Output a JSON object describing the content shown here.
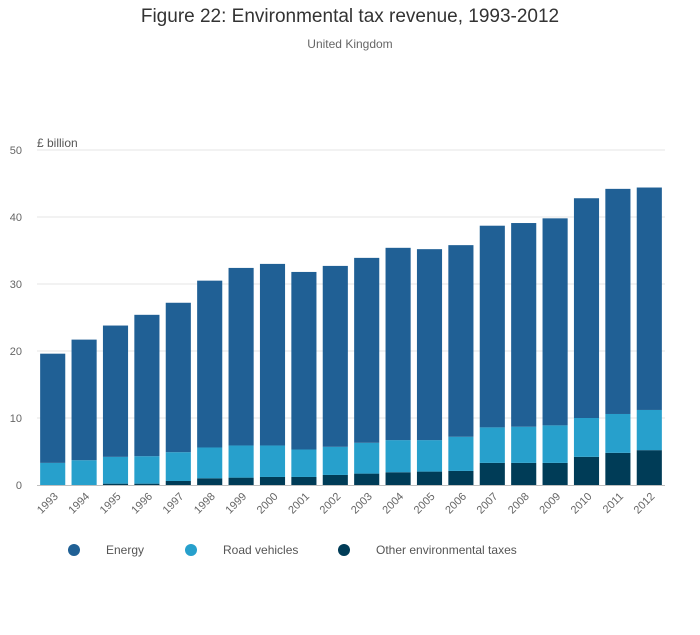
{
  "chart_data": {
    "type": "bar",
    "stacked": true,
    "title": "Figure 22: Environmental tax revenue, 1993-2012",
    "subtitle": "United Kingdom",
    "unit_label": "£ billion",
    "ylim": [
      0,
      50
    ],
    "yticks": [
      0,
      10,
      20,
      30,
      40,
      50
    ],
    "grid": true,
    "legend_position": "bottom",
    "categories": [
      "1993",
      "1994",
      "1995",
      "1996",
      "1997",
      "1998",
      "1999",
      "2000",
      "2001",
      "2002",
      "2003",
      "2004",
      "2005",
      "2006",
      "2007",
      "2008",
      "2009",
      "2010",
      "2011",
      "2012"
    ],
    "series": [
      {
        "name": "Other environmental taxes",
        "color": "#003c57",
        "values": [
          0,
          0,
          0.2,
          0.2,
          0.6,
          1.0,
          1.1,
          1.2,
          1.2,
          1.5,
          1.7,
          1.9,
          2.0,
          2.1,
          3.3,
          3.3,
          3.3,
          4.2,
          4.8,
          5.2
        ]
      },
      {
        "name": "Road vehicles",
        "color": "#27a0cc",
        "values": [
          3.3,
          3.7,
          4.0,
          4.1,
          4.3,
          4.6,
          4.8,
          4.7,
          4.1,
          4.2,
          4.6,
          4.8,
          4.7,
          5.1,
          5.3,
          5.4,
          5.6,
          5.8,
          5.8,
          6.0
        ]
      },
      {
        "name": "Energy",
        "color": "#206095",
        "values": [
          16.3,
          18.0,
          19.6,
          21.1,
          22.3,
          24.9,
          26.5,
          27.1,
          26.5,
          27.0,
          27.6,
          28.7,
          28.5,
          28.6,
          30.1,
          30.4,
          30.9,
          32.8,
          33.6,
          33.2
        ]
      }
    ]
  },
  "legend": [
    {
      "label": "Energy",
      "color": "#206095"
    },
    {
      "label": "Road vehicles",
      "color": "#27a0cc"
    },
    {
      "label": "Other environmental taxes",
      "color": "#003c57"
    }
  ]
}
